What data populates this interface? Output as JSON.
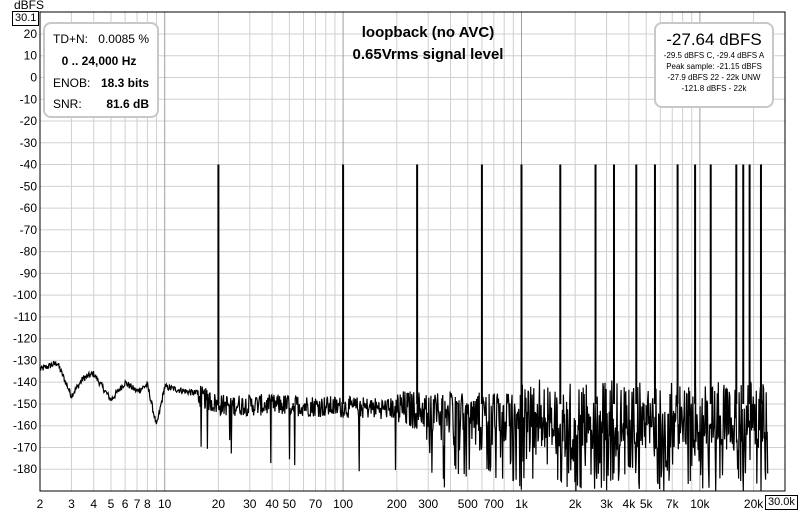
{
  "chart_data": {
    "type": "line",
    "title": "loopback (no AVC)",
    "subtitle": "0.65Vrms signal level",
    "ylabel": "dBFS",
    "y_top_box": "30.1",
    "x_right_box": "30.0k",
    "xscale": "log",
    "xlim": [
      2,
      30000
    ],
    "ylim": [
      -190,
      30.1
    ],
    "yticks": [
      20,
      10,
      0,
      -10,
      -20,
      -30,
      -40,
      -50,
      -60,
      -70,
      -80,
      -90,
      -100,
      -110,
      -120,
      -130,
      -140,
      -150,
      -160,
      -170,
      -180
    ],
    "xticks": [
      {
        "v": 2,
        "label": "2"
      },
      {
        "v": 3,
        "label": "3"
      },
      {
        "v": 4,
        "label": "4"
      },
      {
        "v": 5,
        "label": "5"
      },
      {
        "v": 6,
        "label": "6"
      },
      {
        "v": 7,
        "label": "7"
      },
      {
        "v": 8,
        "label": "8"
      },
      {
        "v": 10,
        "label": "10"
      },
      {
        "v": 20,
        "label": "20"
      },
      {
        "v": 30,
        "label": "30"
      },
      {
        "v": 40,
        "label": "40"
      },
      {
        "v": 50,
        "label": "50"
      },
      {
        "v": 70,
        "label": "70"
      },
      {
        "v": 100,
        "label": "100"
      },
      {
        "v": 200,
        "label": "200"
      },
      {
        "v": 300,
        "label": "300"
      },
      {
        "v": 500,
        "label": "500"
      },
      {
        "v": 700,
        "label": "700"
      },
      {
        "v": 1000,
        "label": "1k"
      },
      {
        "v": 2000,
        "label": "2k"
      },
      {
        "v": 3000,
        "label": "3k"
      },
      {
        "v": 4000,
        "label": "4k"
      },
      {
        "v": 5000,
        "label": "5k"
      },
      {
        "v": 7000,
        "label": "7k"
      },
      {
        "v": 10000,
        "label": "10k"
      },
      {
        "v": 20000,
        "label": "20k"
      }
    ],
    "tones": [
      {
        "f": 20,
        "db": -40
      },
      {
        "f": 100,
        "db": -40
      },
      {
        "f": 260,
        "db": -40
      },
      {
        "f": 600,
        "db": -40
      },
      {
        "f": 1000,
        "db": -40
      },
      {
        "f": 1650,
        "db": -40
      },
      {
        "f": 2600,
        "db": -40
      },
      {
        "f": 3300,
        "db": -40
      },
      {
        "f": 4400,
        "db": -40
      },
      {
        "f": 5600,
        "db": -40
      },
      {
        "f": 7500,
        "db": -40
      },
      {
        "f": 9400,
        "db": -40
      },
      {
        "f": 11500,
        "db": -40
      },
      {
        "f": 16000,
        "db": -40
      },
      {
        "f": 17500,
        "db": -40
      },
      {
        "f": 19000,
        "db": -40
      },
      {
        "f": 22000,
        "db": -40
      }
    ],
    "noise_floor": [
      {
        "f": 2,
        "db": -134
      },
      {
        "f": 2.5,
        "db": -131
      },
      {
        "f": 3,
        "db": -146
      },
      {
        "f": 3.5,
        "db": -138
      },
      {
        "f": 4,
        "db": -136
      },
      {
        "f": 5,
        "db": -148
      },
      {
        "f": 6,
        "db": -140
      },
      {
        "f": 7,
        "db": -144
      },
      {
        "f": 8,
        "db": -141
      },
      {
        "f": 9,
        "db": -160
      },
      {
        "f": 10,
        "db": -142
      },
      {
        "f": 15,
        "db": -145
      },
      {
        "f": 20,
        "db": -150
      },
      {
        "f": 50,
        "db": -150
      },
      {
        "f": 100,
        "db": -151
      },
      {
        "f": 1000,
        "db": -153
      },
      {
        "f": 10000,
        "db": -154
      },
      {
        "f": 24000,
        "db": -154
      }
    ]
  },
  "stats": {
    "tdn_label": "TD+N:",
    "tdn_value": "0.0085 %",
    "range": "0 .. 24,000 Hz",
    "enob_label": "ENOB:",
    "enob_value": "18.3 bits",
    "snr_label": "SNR:",
    "snr_value": "81.6 dB"
  },
  "level": {
    "main": "-27.64 dBFS",
    "line1": "-29.5 dBFS C, -29.4 dBFS A",
    "line2": "Peak sample: -21.15 dBFS",
    "line3": "-27.9 dBFS 22 - 22k UNW",
    "line4": "-121.8 dBFS - 22k"
  }
}
